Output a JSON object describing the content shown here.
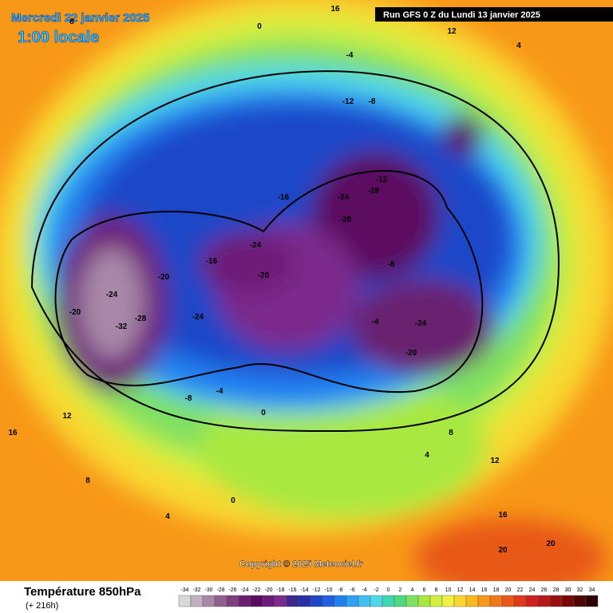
{
  "header": {
    "date": "Mercredi 22 janvier 2025",
    "time": "1:00 locale",
    "run": "Run GFS 0 Z du Lundi 13 janvier 2025"
  },
  "map": {
    "copyright": "Copyright © 2025 Meteociel.fr",
    "contour_labels": [
      "16",
      "12",
      "8",
      "4",
      "0",
      "-4",
      "-8",
      "-12",
      "-16",
      "-20",
      "-24",
      "-28",
      "-32",
      "-28",
      "-24",
      "-20",
      "-24",
      "-28",
      "-12",
      "-20",
      "-24",
      "-8",
      "-4",
      "0",
      "4",
      "8",
      "12",
      "16",
      "20",
      "20",
      "16",
      "12",
      "8",
      "4",
      "0",
      "-4",
      "-8",
      "-16",
      "-20",
      "-24"
    ]
  },
  "legend": {
    "title": "Température 850hPa",
    "subtitle": "(+ 216h)",
    "ticks": [
      -34,
      -32,
      -30,
      -28,
      -26,
      -24,
      -22,
      -20,
      -18,
      -16,
      -14,
      -12,
      -10,
      -8,
      -6,
      -4,
      -2,
      0,
      2,
      4,
      6,
      8,
      10,
      12,
      14,
      16,
      18,
      20,
      22,
      24,
      26,
      28,
      30,
      32,
      34
    ],
    "colors": [
      "#d8d8d8",
      "#c0b0c0",
      "#a888a8",
      "#906090",
      "#7c4080",
      "#6a2070",
      "#5c0a60",
      "#6e1a78",
      "#7c2a8c",
      "#3c2890",
      "#2830a8",
      "#1e46c8",
      "#2060e0",
      "#2080f0",
      "#30a0f0",
      "#40c0f0",
      "#50d8e8",
      "#40d8b0",
      "#50d880",
      "#80e060",
      "#a8e840",
      "#d0f040",
      "#f0f040",
      "#f8d830",
      "#f8b820",
      "#f89818",
      "#f07818",
      "#e85818",
      "#e03818",
      "#d02020",
      "#b81818",
      "#981010",
      "#780808",
      "#500404",
      "#300000"
    ]
  }
}
